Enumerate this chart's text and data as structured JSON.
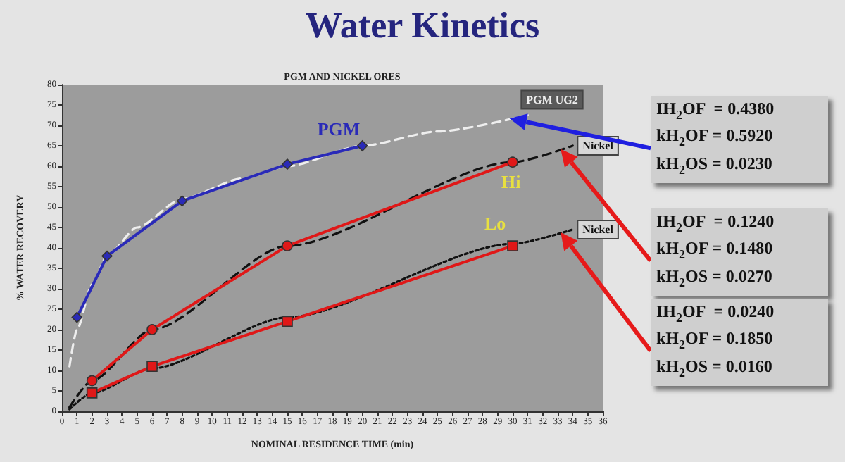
{
  "chart_data": {
    "type": "line",
    "title": "Water Kinetics",
    "subtitle": "PGM AND NICKEL ORES",
    "xlabel": "NOMINAL RESIDENCE TIME (min)",
    "ylabel": "% WATER RECOVERY",
    "xlim": [
      0,
      36
    ],
    "xticks": [
      0,
      1,
      2,
      3,
      4,
      5,
      6,
      7,
      8,
      9,
      10,
      11,
      12,
      13,
      14,
      15,
      16,
      17,
      18,
      19,
      20,
      21,
      22,
      23,
      24,
      25,
      26,
      27,
      28,
      29,
      30,
      31,
      32,
      33,
      34,
      35,
      36
    ],
    "ylim": [
      0,
      80
    ],
    "yticks": [
      0,
      5,
      10,
      15,
      20,
      25,
      30,
      35,
      40,
      45,
      50,
      55,
      60,
      65,
      70,
      75,
      80
    ],
    "grid": false,
    "legend": false,
    "series": [
      {
        "name": "PGM",
        "color": "#2a2ab8",
        "marker": "diamond",
        "line_style": "solid",
        "x": [
          1,
          3,
          8,
          15,
          20
        ],
        "values": [
          23,
          38,
          51.5,
          60.5,
          65
        ]
      },
      {
        "name": "PGM UG2",
        "color": "#eeeeee",
        "marker": "none",
        "line_style": "dashed",
        "x": [
          0.5,
          1,
          2,
          3,
          5,
          8,
          12,
          15,
          20,
          25,
          31
        ],
        "values": [
          11,
          20,
          31,
          38,
          45,
          52,
          57,
          60,
          65,
          68.5,
          72.5
        ]
      },
      {
        "name": "Hi",
        "color": "#e01818",
        "marker": "circle",
        "line_style": "solid",
        "x": [
          2,
          6,
          15,
          30
        ],
        "values": [
          7.5,
          20,
          40.5,
          61
        ]
      },
      {
        "name": "Nickel",
        "color": "#111111",
        "marker": "none",
        "line_style": "dashed",
        "x": [
          0.5,
          2,
          6,
          15,
          30,
          34
        ],
        "values": [
          1,
          7.5,
          20,
          40.5,
          61,
          65
        ]
      },
      {
        "name": "Lo",
        "color": "#e01818",
        "marker": "square",
        "line_style": "solid",
        "x": [
          2,
          6,
          15,
          30
        ],
        "values": [
          4.5,
          11,
          22,
          40.5
        ]
      },
      {
        "name": "Nickel",
        "color": "#111111",
        "marker": "none",
        "line_style": "dotted",
        "x": [
          0.5,
          2,
          6,
          15,
          30,
          34
        ],
        "values": [
          0.5,
          4.5,
          10.5,
          23,
          41,
          44.5
        ]
      }
    ],
    "annotations": [
      "IH$_{2}$OF  = 0.4380\nkH$_{2}$OF = 0.5920\nkH$_{2}$OS = 0.0230",
      "IH$_{2}$OF  = 0.1240\nkH$_{2}$OF = 0.1480\nkH$_{2}$OS = 0.0270",
      "IH$_{2}$OF  = 0.0240\nkH$_{2}$OF = 0.1850\nkH$_{2}$OS = 0.0160"
    ]
  }
}
